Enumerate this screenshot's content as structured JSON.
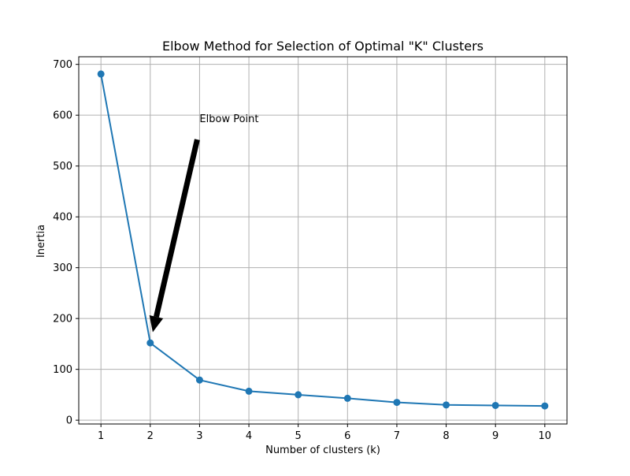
{
  "chart_data": {
    "type": "line",
    "title": "Elbow Method for Selection of Optimal \"K\" Clusters",
    "xlabel": "Number of clusters (k)",
    "ylabel": "Inertia",
    "x": [
      1,
      2,
      3,
      4,
      5,
      6,
      7,
      8,
      9,
      10
    ],
    "series": [
      {
        "values": [
          681,
          152,
          79,
          57,
          50,
          43,
          35,
          30,
          29,
          28
        ],
        "color": "#1f77b4",
        "marker": "circle"
      }
    ],
    "xticks": [
      "1",
      "2",
      "3",
      "4",
      "5",
      "6",
      "7",
      "8",
      "9",
      "10"
    ],
    "yticks": [
      "0",
      "100",
      "200",
      "300",
      "400",
      "500",
      "600",
      "700"
    ],
    "xlim": [
      0.55,
      10.45
    ],
    "ylim": [
      -7.5,
      715
    ],
    "grid": true,
    "annotation": {
      "text": "Elbow Point",
      "point": [
        2,
        152
      ],
      "text_position": [
        3,
        580
      ],
      "arrow_color": "#000000"
    }
  }
}
